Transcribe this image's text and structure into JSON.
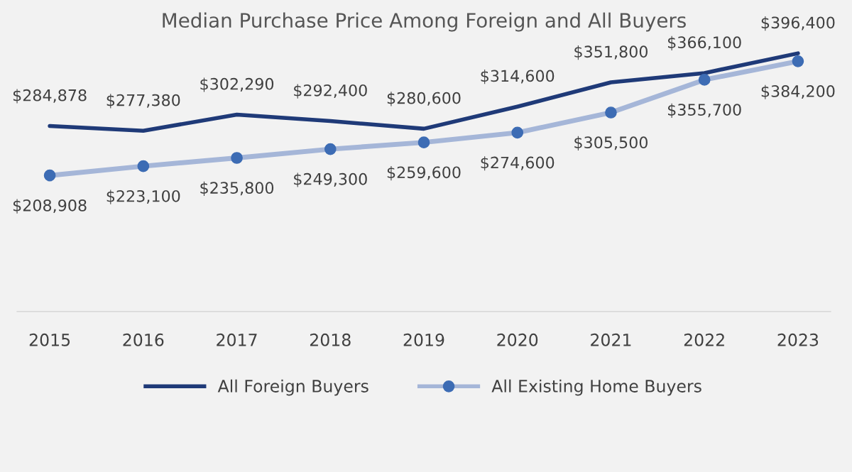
{
  "chart_data": {
    "type": "line",
    "title": "Median Purchase Price Among Foreign and All Buyers",
    "categories": [
      "2015",
      "2016",
      "2017",
      "2018",
      "2019",
      "2020",
      "2021",
      "2022",
      "2023"
    ],
    "series": [
      {
        "name": "All Foreign Buyers",
        "color": "#1f3a78",
        "marker": "none",
        "values": [
          284878,
          277380,
          302290,
          292400,
          280600,
          314600,
          351800,
          366100,
          396400
        ],
        "value_labels": [
          "$284,878",
          "$277,380",
          "$302,290",
          "$292,400",
          "$280,600",
          "$314,600",
          "$351,800",
          "$366,100",
          "$396,400"
        ]
      },
      {
        "name": "All Existing Home Buyers",
        "color": "#3d6cb4",
        "marker": "circle",
        "values": [
          208908,
          223100,
          235800,
          249300,
          259600,
          274600,
          305500,
          355700,
          384200
        ],
        "value_labels": [
          "$208,908",
          "$223,100",
          "$235,800",
          "$249,300",
          "$259,600",
          "$274,600",
          "$305,500",
          "$355,700",
          "$384,200"
        ]
      }
    ],
    "tick_labels": "x",
    "grid": false,
    "legend": "bottom",
    "line_style": "solid"
  }
}
